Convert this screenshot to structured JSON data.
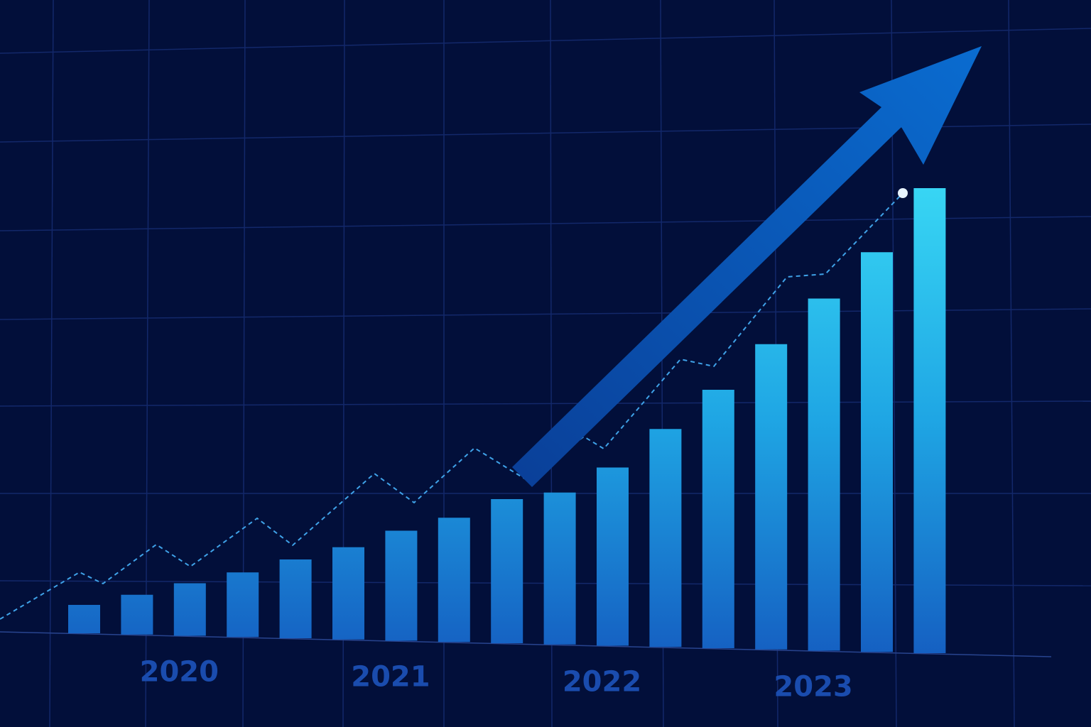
{
  "chart_data": {
    "type": "bar",
    "categories": [
      null,
      null,
      "2020",
      null,
      null,
      null,
      "2021",
      null,
      null,
      null,
      "2022",
      null,
      null,
      null,
      "2023",
      null,
      null
    ],
    "values": [
      40,
      56,
      74,
      91,
      111,
      130,
      155,
      175,
      203,
      214,
      251,
      307,
      364,
      430,
      496,
      563,
      655
    ]
  }
}
